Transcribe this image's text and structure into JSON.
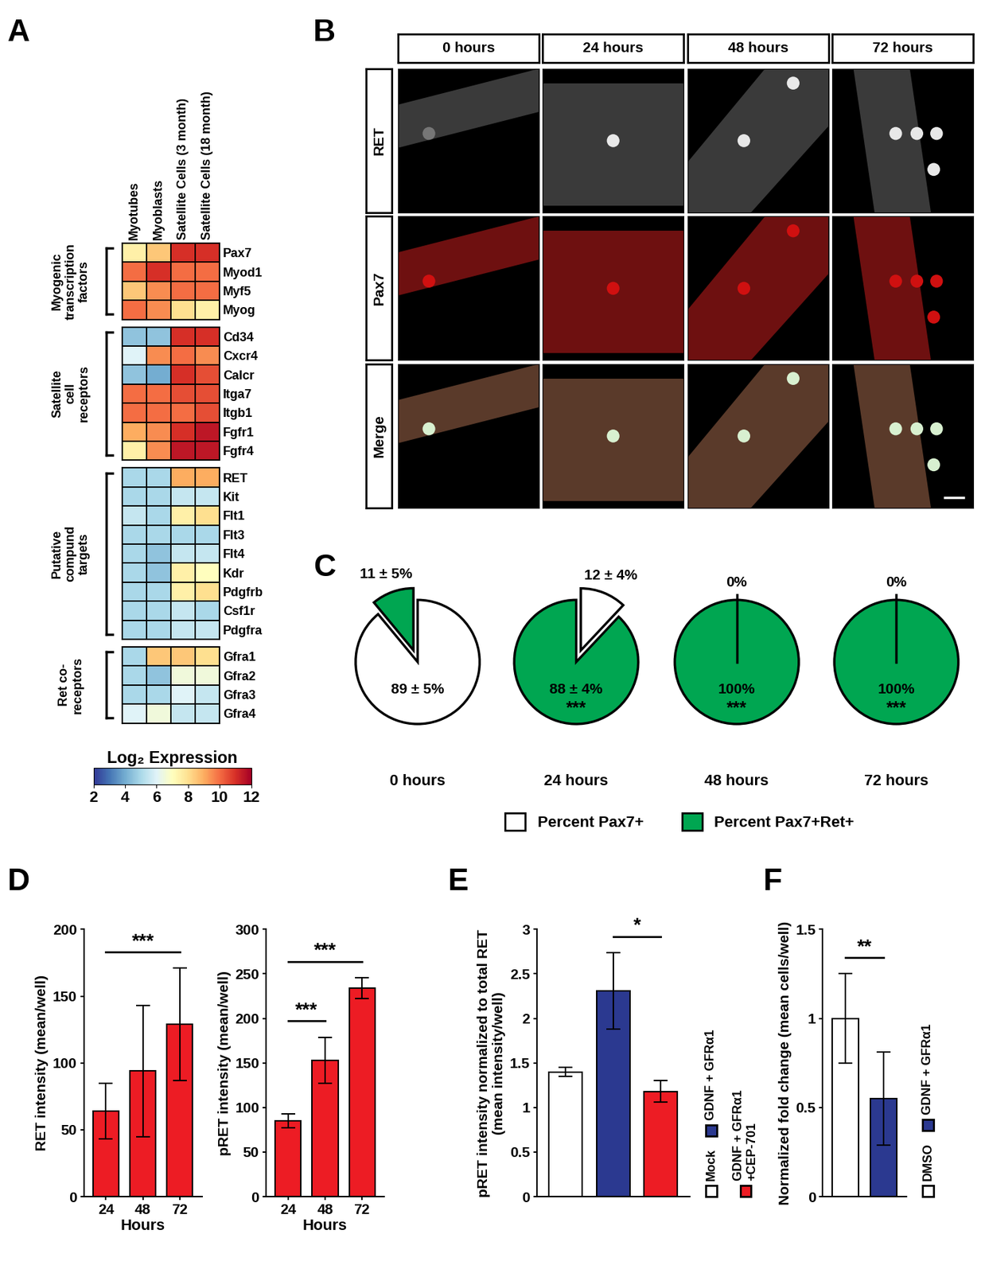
{
  "panel_labels": [
    "A",
    "B",
    "C",
    "D",
    "E",
    "F"
  ],
  "image_panel": {
    "column_titles": [
      "0 hours",
      "24 hours",
      "48 hours",
      "72 hours"
    ],
    "row_titles": [
      "RET",
      "Pax7",
      "Merge"
    ]
  },
  "chart_data": [
    {
      "type": "heatmap",
      "columns": [
        "Myotubes",
        "Myoblasts",
        "Satellite Cells (3 month)",
        "Satellite Cells (18 month)"
      ],
      "groups": [
        {
          "name": "Myogenic transcription factors",
          "rows": [
            "Pax7",
            "Myod1",
            "Myf5",
            "Myog"
          ],
          "values": [
            [
              7.5,
              8.5,
              11,
              11
            ],
            [
              10,
              11,
              10,
              10
            ],
            [
              8.5,
              9.5,
              10,
              10
            ],
            [
              10,
              9.5,
              8,
              7.5
            ]
          ]
        },
        {
          "name": "Satellite cell receptors",
          "rows": [
            "Cd34",
            "Cxcr4",
            "Calcr",
            "Itga7",
            "Itgb1",
            "Fgfr1",
            "Fgfr4"
          ],
          "values": [
            [
              4.5,
              4.5,
              11,
              11
            ],
            [
              6,
              9.5,
              10,
              9.5
            ],
            [
              4.5,
              4,
              11,
              10.5
            ],
            [
              10,
              10,
              10.5,
              10.5
            ],
            [
              10,
              10,
              10,
              10.5
            ],
            [
              9,
              9.5,
              11,
              11.5
            ],
            [
              7.5,
              9.5,
              11.5,
              11.5
            ]
          ]
        },
        {
          "name": "Putative compund targets",
          "rows": [
            "RET",
            "Kit",
            "Flt1",
            "Flt3",
            "Flt4",
            "Kdr",
            "Pdgfrb",
            "Csf1r",
            "Pdgfra"
          ],
          "values": [
            [
              5,
              5,
              9,
              9
            ],
            [
              5,
              5,
              5.5,
              5.5
            ],
            [
              5.5,
              5,
              7.5,
              8
            ],
            [
              5,
              5,
              5,
              5
            ],
            [
              5,
              4.5,
              5.5,
              5.5
            ],
            [
              5,
              4.5,
              7.5,
              7
            ],
            [
              5,
              5,
              7.5,
              8
            ],
            [
              5,
              5,
              5.5,
              5
            ],
            [
              5,
              5,
              5.5,
              5.5
            ]
          ]
        },
        {
          "name": "Ret co-receptors",
          "rows": [
            "Gfra1",
            "Gfra2",
            "Gfra3",
            "Gfra4"
          ],
          "values": [
            [
              5,
              8.5,
              8.5,
              8
            ],
            [
              5,
              4.5,
              6.5,
              6.5
            ],
            [
              5,
              5,
              6,
              5.5
            ],
            [
              6,
              6.5,
              5.5,
              5.5
            ]
          ]
        }
      ],
      "colorbar": {
        "label": "Log₂ Expression",
        "range": [
          2,
          12
        ],
        "ticks": [
          2,
          4,
          6,
          8,
          10,
          12
        ]
      }
    },
    {
      "type": "pie",
      "legend": "bottom",
      "categories": [
        "Percent Pax7+",
        "Percent Pax7+Ret+"
      ],
      "colors": [
        "#ffffff",
        "#00a651"
      ],
      "pies": [
        {
          "title": "0 hours",
          "values": [
            89,
            11
          ],
          "value_labels": [
            "89 ± 5%",
            "11 ± 5%"
          ]
        },
        {
          "title": "24 hours",
          "values": [
            12,
            88
          ],
          "value_labels": [
            "12 ± 4%",
            "88 ± 4%"
          ],
          "annotation": "***"
        },
        {
          "title": "48 hours",
          "values": [
            0,
            100
          ],
          "value_labels": [
            "0%",
            "100%"
          ],
          "annotation": "***"
        },
        {
          "title": "72 hours",
          "values": [
            0,
            100
          ],
          "value_labels": [
            "0%",
            "100%"
          ],
          "annotation": "***"
        }
      ]
    },
    {
      "type": "bar",
      "categories": [
        "24",
        "48",
        "72"
      ],
      "values": [
        64,
        94,
        129
      ],
      "errors": [
        21,
        49,
        42
      ],
      "color": "#ed1c24",
      "xlabel": "Hours",
      "ylabel": "RET intensity (mean/well)",
      "ylim": [
        0,
        200
      ],
      "yticks": [
        0,
        50,
        100,
        150,
        200
      ],
      "annotations": [
        {
          "text": "***",
          "from": "24",
          "to": "72"
        }
      ]
    },
    {
      "type": "bar",
      "categories": [
        "24",
        "48",
        "72"
      ],
      "values": [
        85,
        153,
        234
      ],
      "errors": [
        8,
        26,
        12
      ],
      "color": "#ed1c24",
      "xlabel": "Hours",
      "ylabel": "pRET intensity (mean/well)",
      "ylim": [
        0,
        300
      ],
      "yticks": [
        0,
        50,
        100,
        150,
        200,
        250,
        300
      ],
      "annotations": [
        {
          "text": "***",
          "from": "24",
          "to": "48"
        },
        {
          "text": "***",
          "from": "24",
          "to": "72"
        }
      ]
    },
    {
      "type": "bar",
      "categories": [
        "Mock",
        "GDNF + GFRα1",
        "GDNF + GFRα1 +CEP-701"
      ],
      "values": [
        1.4,
        2.31,
        1.18
      ],
      "errors": [
        0.05,
        0.43,
        0.12
      ],
      "colors": [
        "#ffffff",
        "#2b3990",
        "#ed1c24"
      ],
      "ylabel": "pRET intensity normalized to total RET (mean intensity/well)",
      "ylim": [
        0,
        3
      ],
      "yticks": [
        0,
        0.5,
        1,
        1.5,
        2,
        2.5,
        3
      ],
      "tick_labels": "y",
      "legend": "right",
      "annotations": [
        {
          "text": "*",
          "from": "GDNF + GFRα1",
          "to": "GDNF + GFRα1 +CEP-701"
        }
      ]
    },
    {
      "type": "bar",
      "categories": [
        "DMSO",
        "GDNF + GFRα1"
      ],
      "values": [
        1.0,
        0.55
      ],
      "errors": [
        0.25,
        0.26
      ],
      "colors": [
        "#ffffff",
        "#2b3990"
      ],
      "ylabel": "Normalized fold change (mean cells/well)",
      "ylim": [
        0,
        1.5
      ],
      "yticks": [
        0,
        0.5,
        1,
        1.5
      ],
      "tick_labels": "y",
      "legend": "right",
      "annotations": [
        {
          "text": "**",
          "from": "DMSO",
          "to": "GDNF + GFRα1"
        }
      ]
    }
  ]
}
